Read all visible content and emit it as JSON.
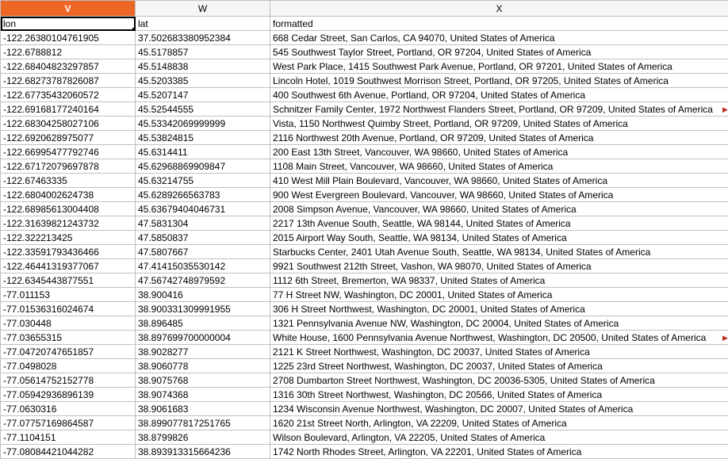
{
  "columns": [
    {
      "letter": "V",
      "selected": true
    },
    {
      "letter": "W",
      "selected": false
    },
    {
      "letter": "X",
      "selected": false
    }
  ],
  "headers_row": {
    "v": "lon",
    "w": "lat",
    "x": "formatted"
  },
  "rows": [
    {
      "v": "-122.26380104761905",
      "w": "37.502683380952384",
      "x": "668 Cedar Street, San Carlos, CA 94070, United States of America"
    },
    {
      "v": "-122.6788812",
      "w": "45.5178857",
      "x": "545 Southwest Taylor Street, Portland, OR 97204, United States of America"
    },
    {
      "v": "-122.68404823297857",
      "w": "45.5148838",
      "x": "West Park Place, 1415 Southwest Park Avenue, Portland, OR 97201, United States of America"
    },
    {
      "v": "-122.68273787826087",
      "w": "45.5203385",
      "x": "Lincoln Hotel, 1019 Southwest Morrison Street, Portland, OR 97205, United States of America"
    },
    {
      "v": "-122.67735432060572",
      "w": "45.5207147",
      "x": "400 Southwest 6th Avenue, Portland, OR 97204, United States of America"
    },
    {
      "v": "-122.69168177240164",
      "w": "45.52544555",
      "x": "Schnitzer Family Center, 1972 Northwest Flanders Street, Portland, OR 97209, United States of America",
      "overflow": true
    },
    {
      "v": "-122.68304258027106",
      "w": "45.53342069999999",
      "x": "Vista, 1150 Northwest Quimby Street, Portland, OR 97209, United States of America"
    },
    {
      "v": "-122.6920628975077",
      "w": "45.53824815",
      "x": "2116 Northwest 20th Avenue, Portland, OR 97209, United States of America"
    },
    {
      "v": "-122.66995477792746",
      "w": "45.6314411",
      "x": "200 East 13th Street, Vancouver, WA 98660, United States of America"
    },
    {
      "v": "-122.67172079697878",
      "w": "45.62968869909847",
      "x": "1108 Main Street, Vancouver, WA 98660, United States of America"
    },
    {
      "v": "-122.67463335",
      "w": "45.63214755",
      "x": "410 West Mill Plain Boulevard, Vancouver, WA 98660, United States of America"
    },
    {
      "v": "-122.6804002624738",
      "w": "45.6289266563783",
      "x": "900 West Evergreen Boulevard, Vancouver, WA 98660, United States of America"
    },
    {
      "v": "-122.68985613004408",
      "w": "45.63679404046731",
      "x": "2008 Simpson Avenue, Vancouver, WA 98660, United States of America"
    },
    {
      "v": "-122.31639821243732",
      "w": "47.5831304",
      "x": "2217 13th Avenue South, Seattle, WA 98144, United States of America"
    },
    {
      "v": "-122.322213425",
      "w": "47.5850837",
      "x": "2015 Airport Way South, Seattle, WA 98134, United States of America"
    },
    {
      "v": "-122.33591793436466",
      "w": "47.5807667",
      "x": "Starbucks Center, 2401 Utah Avenue South, Seattle, WA 98134, United States of America"
    },
    {
      "v": "-122.46441319377067",
      "w": "47.41415035530142",
      "x": "9921 Southwest 212th Street, Vashon, WA 98070, United States of America"
    },
    {
      "v": "-122.6345443877551",
      "w": "47.56742748979592",
      "x": "1112 6th Street, Bremerton, WA 98337, United States of America"
    },
    {
      "v": "-77.011153",
      "w": "38.900416",
      "x": "77 H Street NW, Washington, DC 20001, United States of America"
    },
    {
      "v": "-77.01536316024674",
      "w": "38.900331309991955",
      "x": "306 H Street Northwest, Washington, DC 20001, United States of America"
    },
    {
      "v": "-77.030448",
      "w": "38.896485",
      "x": "1321 Pennsylvania Avenue NW, Washington, DC 20004, United States of America"
    },
    {
      "v": "-77.03655315",
      "w": "38.897699700000004",
      "x": "White House, 1600 Pennsylvania Avenue Northwest, Washington, DC 20500, United States of America",
      "overflow": true
    },
    {
      "v": "-77.04720747651857",
      "w": "38.9028277",
      "x": "2121 K Street Northwest, Washington, DC 20037, United States of America"
    },
    {
      "v": "-77.0498028",
      "w": "38.9060778",
      "x": "1225 23rd Street Northwest, Washington, DC 20037, United States of America"
    },
    {
      "v": "-77.05614752152778",
      "w": "38.9075768",
      "x": "2708 Dumbarton Street Northwest, Washington, DC 20036-5305, United States of America"
    },
    {
      "v": "-77.05942936896139",
      "w": "38.9074368",
      "x": "1316 30th Street Northwest, Washington, DC 20566, United States of America"
    },
    {
      "v": "-77.0630316",
      "w": "38.9061683",
      "x": "1234 Wisconsin Avenue Northwest, Washington, DC 20007, United States of America"
    },
    {
      "v": "-77.07757169864587",
      "w": "38.899077817251765",
      "x": "1620 21st Street North, Arlington, VA 22209, United States of America"
    },
    {
      "v": "-77.1104151",
      "w": "38.8799826",
      "x": "Wilson Boulevard, Arlington, VA 22205, United States of America"
    },
    {
      "v": "-77.08084421044282",
      "w": "38.893913315664236",
      "x": "1742 North Rhodes Street, Arlington, VA 22201, United States of America"
    }
  ]
}
